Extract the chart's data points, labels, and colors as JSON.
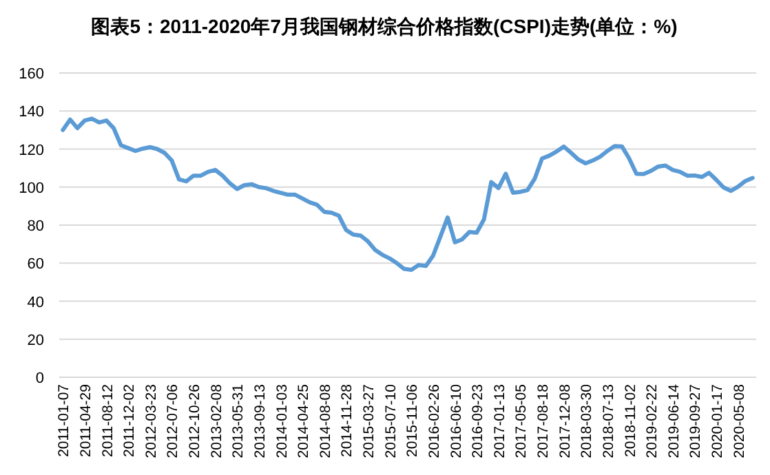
{
  "chart_data": {
    "type": "line",
    "title": "图表5：2011-2020年7月我国钢材综合价格指数(CSPI)走势(单位：%)",
    "categories": [
      "2011-01-07",
      null,
      null,
      "2011-04-29",
      null,
      null,
      "2011-08-12",
      null,
      null,
      "2011-12-02",
      null,
      null,
      "2012-03-23",
      null,
      null,
      "2012-07-06",
      null,
      null,
      "2012-10-26",
      null,
      null,
      "2013-02-08",
      null,
      null,
      "2013-05-31",
      null,
      null,
      "2013-09-13",
      null,
      null,
      "2014-01-03",
      null,
      null,
      "2014-04-25",
      null,
      null,
      "2014-08-08",
      null,
      null,
      "2014-11-28",
      null,
      null,
      "2015-03-27",
      null,
      null,
      "2015-07-10",
      null,
      null,
      "2015-11-06",
      null,
      null,
      "2016-02-26",
      null,
      null,
      "2016-06-10",
      null,
      null,
      "2016-09-23",
      null,
      null,
      "2017-01-13",
      null,
      null,
      "2017-05-05",
      null,
      null,
      "2017-08-18",
      null,
      null,
      "2017-12-08",
      null,
      null,
      "2018-03-30",
      null,
      null,
      "2018-07-13",
      null,
      null,
      "2018-11-02",
      null,
      null,
      "2019-02-22",
      null,
      null,
      "2019-06-14",
      null,
      null,
      "2019-09-27",
      null,
      null,
      "2020-01-17",
      null,
      null,
      "2020-05-08",
      null,
      null
    ],
    "series": [
      {
        "color": "#5b9bd5",
        "values": [
          130,
          135.5,
          131,
          135,
          136,
          134,
          135,
          131,
          122,
          120.5,
          119,
          120.2,
          121,
          120,
          118,
          114,
          104,
          103,
          106,
          106,
          108,
          109,
          106,
          102,
          99,
          101,
          101.5,
          100,
          99.4,
          98,
          97,
          96,
          96,
          94,
          92,
          90.7,
          87,
          86.5,
          85,
          77.5,
          75,
          74.5,
          71.5,
          67,
          64.4,
          62.5,
          60,
          57,
          56.5,
          59,
          58.5,
          64,
          74,
          84,
          71,
          72.5,
          76.4,
          76,
          83,
          102.6,
          99.5,
          107,
          97,
          97.5,
          98.4,
          104.5,
          115,
          116.5,
          118.7,
          121.3,
          118,
          114.5,
          112.5,
          114,
          116,
          119,
          121.5,
          121.4,
          115,
          107,
          106.9,
          108.5,
          110.8,
          111.3,
          109,
          108,
          106,
          106.1,
          105.3,
          107.5,
          103.8,
          99.8,
          98,
          100.2,
          103.2,
          104.8
        ]
      }
    ],
    "ylim": [
      0,
      160
    ],
    "yticks": [
      0,
      20,
      40,
      60,
      80,
      100,
      120,
      140,
      160
    ],
    "grid": "y",
    "marker": "none",
    "line_style": "solid"
  }
}
